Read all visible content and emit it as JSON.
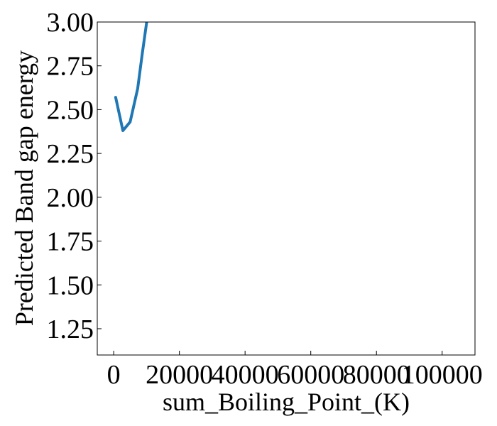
{
  "chart_data": {
    "type": "line",
    "title": "",
    "xlabel": "sum_Boiling_Point_(K)",
    "ylabel": "Predicted Band gap energy",
    "xlim": [
      -5000,
      110000
    ],
    "ylim": [
      1.1,
      3.0
    ],
    "x_ticks": [
      0,
      20000,
      40000,
      60000,
      80000,
      100000
    ],
    "y_ticks": [
      1.25,
      1.5,
      1.75,
      2.0,
      2.25,
      2.5,
      2.75,
      3.0
    ],
    "x_tick_labels": [
      "0",
      "20000",
      "40000",
      "60000",
      "80000",
      "100000"
    ],
    "y_tick_labels": [
      "1.25",
      "1.50",
      "1.75",
      "2.00",
      "2.25",
      "2.50",
      "2.75",
      "3.00"
    ],
    "grid": false,
    "legend": "none",
    "series": [
      {
        "color": "#1f77b4",
        "x": [
          600,
          2800,
          5000,
          7300,
          8700,
          10200
        ],
        "y": [
          2.57,
          2.38,
          2.43,
          2.62,
          2.82,
          3.02
        ]
      }
    ]
  }
}
